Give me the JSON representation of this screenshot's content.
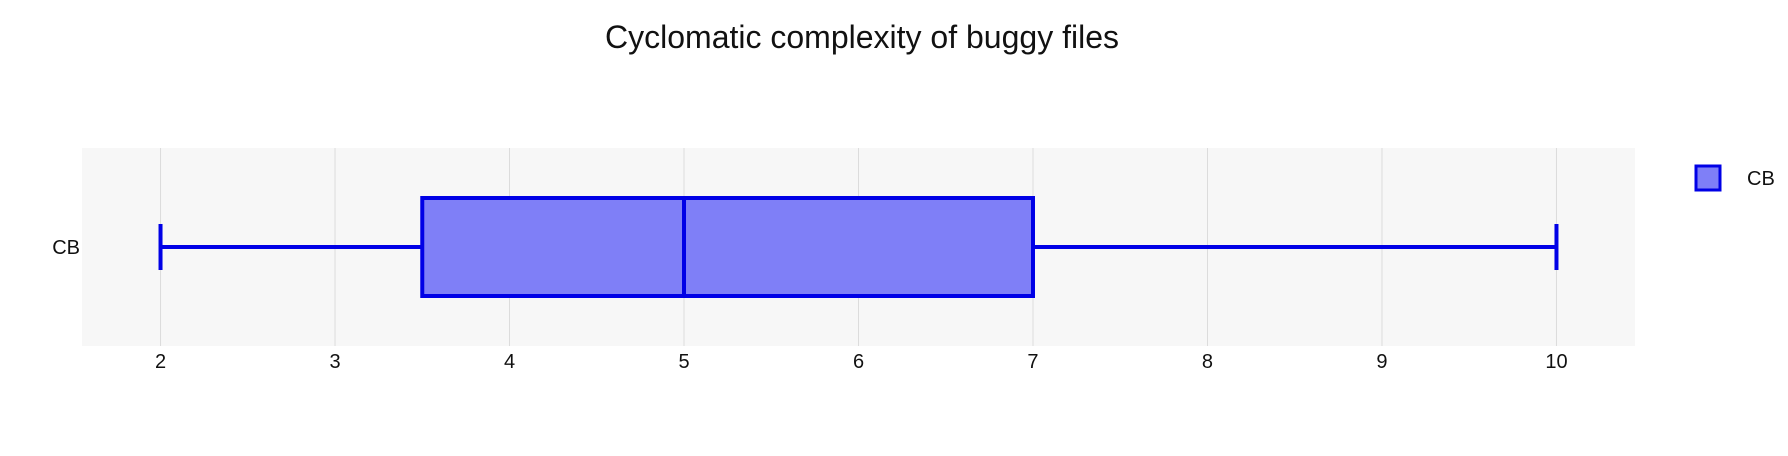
{
  "chart_data": {
    "type": "box",
    "title": "Cyclomatic complexity of buggy files",
    "orientation": "horizontal",
    "xlabel": "",
    "ylabel": "",
    "xlim": [
      1.55,
      10.45
    ],
    "x_ticks": [
      2,
      3,
      4,
      5,
      6,
      7,
      8,
      9,
      10
    ],
    "grid": true,
    "legend_position": "top-right",
    "series": [
      {
        "name": "CB",
        "min": 2,
        "q1": 3.5,
        "median": 5,
        "q3": 7,
        "max": 10
      }
    ],
    "colors": {
      "stroke": "#0000e6",
      "fill": "#7f7ff7",
      "plot_background": "#f7f7f7",
      "grid": "#dcdcdc"
    }
  }
}
